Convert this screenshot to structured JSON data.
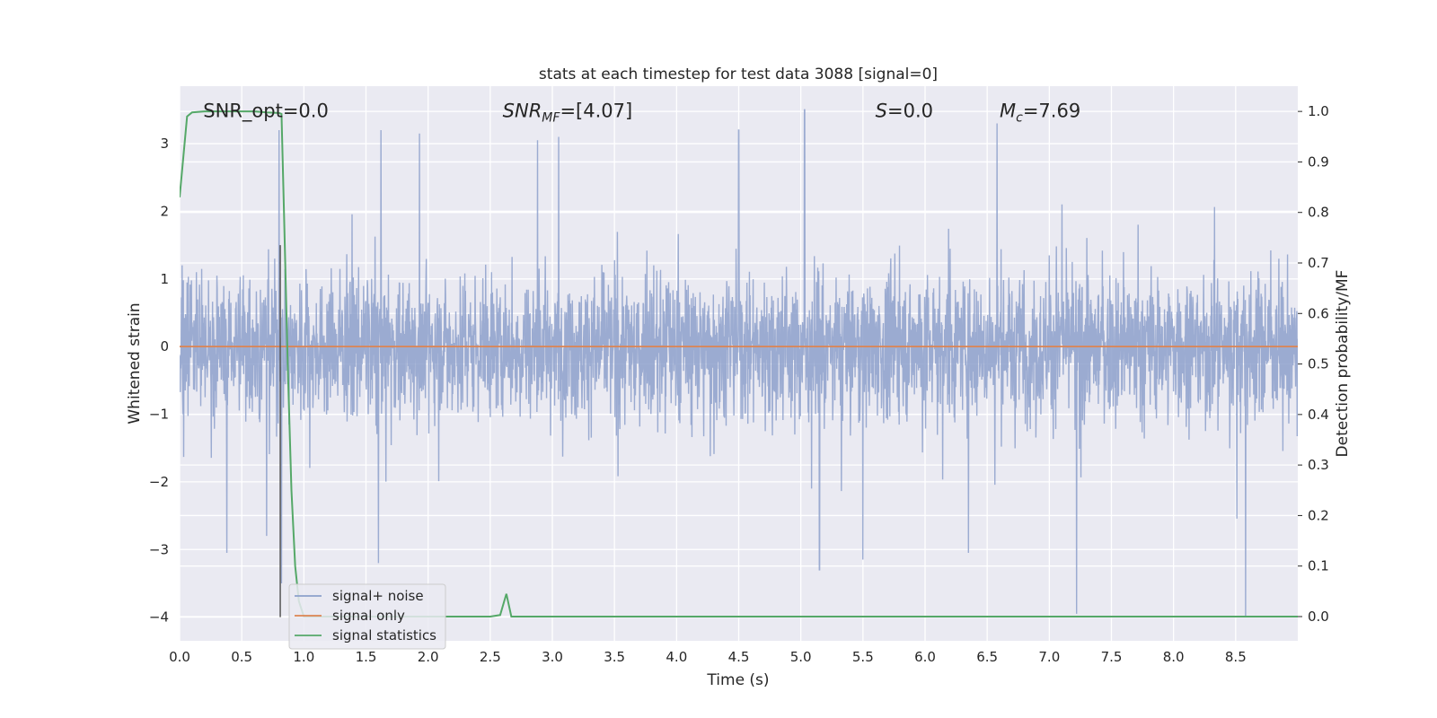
{
  "chart_data": {
    "type": "line",
    "title": "stats at each timestep for test data 3088 [signal=0]",
    "xlabel": "Time (s)",
    "ylabel": "Whitened strain",
    "ylabel_right": "Detection probability/MF",
    "xlim": [
      0.0,
      9.0
    ],
    "ylim": [
      -4.35,
      3.85
    ],
    "ylim_right": [
      -0.048,
      1.05
    ],
    "x_ticks": [
      0.0,
      0.5,
      1.0,
      1.5,
      2.0,
      2.5,
      3.0,
      3.5,
      4.0,
      4.5,
      5.0,
      5.5,
      6.0,
      6.5,
      7.0,
      7.5,
      8.0,
      8.5
    ],
    "x_tick_labels": [
      "0.0",
      "0.5",
      "1.0",
      "1.5",
      "2.0",
      "2.5",
      "3.0",
      "3.5",
      "4.0",
      "4.5",
      "5.0",
      "5.5",
      "6.0",
      "6.5",
      "7.0",
      "7.5",
      "8.0",
      "8.5"
    ],
    "y_ticks": [
      -4,
      -3,
      -2,
      -1,
      0,
      1,
      2,
      3
    ],
    "y_tick_labels": [
      "−4",
      "−3",
      "−2",
      "−1",
      "0",
      "1",
      "2",
      "3"
    ],
    "y_ticks_right": [
      0.0,
      0.1,
      0.2,
      0.3,
      0.4,
      0.5,
      0.6,
      0.7,
      0.8,
      0.9,
      1.0
    ],
    "y_tick_labels_right": [
      "0.0",
      "0.1",
      "0.2",
      "0.3",
      "0.4",
      "0.5",
      "0.6",
      "0.7",
      "0.8",
      "0.9",
      "1.0"
    ],
    "grid": true,
    "legend_position": "bottom-left",
    "series": [
      {
        "name": "signal+ noise",
        "color": "#8da0cb",
        "axis": "left",
        "style": "dense-noise",
        "t_start": 0.0,
        "t_end": 9.0,
        "sample_rate": 2048,
        "typical_range": [
          -1.8,
          2.1
        ],
        "spikes": [
          [
            0.38,
            -3.05
          ],
          [
            0.7,
            -2.8
          ],
          [
            0.82,
            -3.5
          ],
          [
            1.6,
            -3.2
          ],
          [
            5.15,
            -3.3
          ],
          [
            5.5,
            -3.15
          ],
          [
            6.35,
            -3.05
          ],
          [
            7.22,
            -3.95
          ],
          [
            8.58,
            -4.0
          ],
          [
            5.03,
            3.5
          ],
          [
            6.58,
            3.3
          ],
          [
            0.8,
            3.2
          ],
          [
            1.62,
            3.2
          ],
          [
            1.93,
            3.15
          ],
          [
            2.88,
            3.05
          ],
          [
            3.05,
            3.1
          ],
          [
            4.5,
            3.2
          ]
        ]
      },
      {
        "name": "signal only",
        "color": "#dd8452",
        "axis": "left",
        "x": [
          0.0,
          9.0
        ],
        "y": [
          0.0,
          0.0
        ]
      },
      {
        "name": "signal statistics",
        "color": "#55a868",
        "axis": "right",
        "x": [
          0.0,
          0.06,
          0.1,
          0.2,
          0.3,
          0.4,
          0.5,
          0.6,
          0.7,
          0.8,
          0.82,
          0.84,
          0.87,
          0.9,
          0.93,
          0.96,
          1.0,
          1.5,
          2.0,
          2.5,
          2.58,
          2.63,
          2.67,
          3.0,
          4.0,
          5.0,
          6.0,
          7.0,
          8.0,
          9.0
        ],
        "y": [
          0.83,
          0.99,
          0.998,
          1.0,
          1.0,
          1.0,
          1.0,
          1.0,
          0.998,
          0.997,
          0.995,
          0.8,
          0.5,
          0.25,
          0.1,
          0.03,
          0.0,
          0.0,
          0.0,
          0.0,
          0.003,
          0.045,
          0.0,
          0.0,
          0.0,
          0.0,
          0.0,
          0.0,
          0.0,
          0.0
        ]
      }
    ],
    "marker_line": {
      "x": 0.81,
      "y_from": -4.0,
      "y_to": 1.5,
      "color": "#555555"
    },
    "annotations": [
      {
        "text": "SNR_opt=0.0",
        "x": 0.19,
        "y": 3.5
      },
      {
        "text": "SNR",
        "sub": "MF",
        "suffix": "=[4.07]",
        "italic": true,
        "x": 2.6,
        "y": 3.5
      },
      {
        "text": "S",
        "suffix": "=0.0",
        "italic": true,
        "x": 5.6,
        "y": 3.5
      },
      {
        "text": "M",
        "sub": "c",
        "suffix": "=7.69",
        "italic": true,
        "x": 6.6,
        "y": 3.5
      }
    ]
  }
}
